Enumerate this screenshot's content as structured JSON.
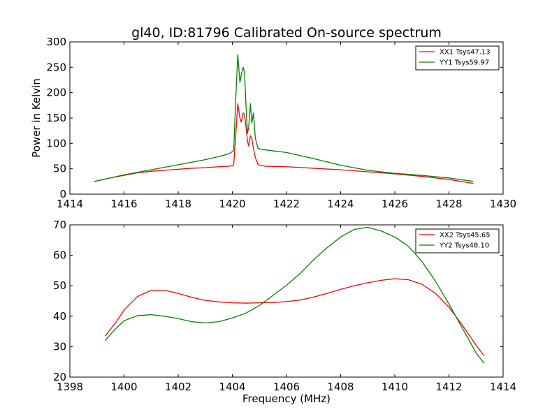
{
  "figure": {
    "title": "gl40, ID:81796 Calibrated On-source spectrum",
    "ylabel": "Power in Kelvin",
    "xlabel": "Frequency (MHz)"
  },
  "chart_data": [
    {
      "type": "line",
      "title": "gl40, ID:81796 Calibrated On-source spectrum",
      "ylabel": "Power in Kelvin",
      "xlabel": "",
      "xlim": [
        1414,
        1430
      ],
      "ylim": [
        0,
        300
      ],
      "xticks": [
        "1414",
        "1416",
        "1418",
        "1420",
        "1422",
        "1424",
        "1426",
        "1428",
        "1430"
      ],
      "yticks": [
        "0",
        "50",
        "100",
        "150",
        "200",
        "250",
        "300"
      ],
      "grid": false,
      "legend_position": "top-right",
      "series": [
        {
          "name": "XX1 Tsys47.13",
          "color": "#ff0000",
          "points": [
            [
              1414.9,
              25
            ],
            [
              1415.5,
              32
            ],
            [
              1416.0,
              37
            ],
            [
              1416.5,
              42
            ],
            [
              1417.0,
              45
            ],
            [
              1417.5,
              47
            ],
            [
              1418.0,
              49
            ],
            [
              1418.5,
              51
            ],
            [
              1419.0,
              52
            ],
            [
              1419.5,
              54
            ],
            [
              1419.9,
              55
            ],
            [
              1420.05,
              57
            ],
            [
              1420.12,
              110
            ],
            [
              1420.2,
              178
            ],
            [
              1420.28,
              150
            ],
            [
              1420.33,
              142
            ],
            [
              1420.4,
              160
            ],
            [
              1420.45,
              157
            ],
            [
              1420.5,
              135
            ],
            [
              1420.56,
              105
            ],
            [
              1420.6,
              95
            ],
            [
              1420.67,
              115
            ],
            [
              1420.72,
              110
            ],
            [
              1420.78,
              90
            ],
            [
              1420.85,
              72
            ],
            [
              1420.95,
              58
            ],
            [
              1421.2,
              55
            ],
            [
              1422.0,
              54
            ],
            [
              1423.0,
              51
            ],
            [
              1424.0,
              48
            ],
            [
              1425.0,
              44
            ],
            [
              1426.0,
              40
            ],
            [
              1427.0,
              35
            ],
            [
              1428.0,
              29
            ],
            [
              1428.9,
              21
            ]
          ]
        },
        {
          "name": "YY1 Tsys59.97",
          "color": "#008000",
          "points": [
            [
              1414.9,
              25
            ],
            [
              1415.5,
              32
            ],
            [
              1416.0,
              38
            ],
            [
              1416.5,
              43
            ],
            [
              1417.0,
              48
            ],
            [
              1417.5,
              53
            ],
            [
              1418.0,
              58
            ],
            [
              1418.5,
              63
            ],
            [
              1419.0,
              68
            ],
            [
              1419.5,
              74
            ],
            [
              1419.9,
              80
            ],
            [
              1420.05,
              86
            ],
            [
              1420.12,
              180
            ],
            [
              1420.2,
              275
            ],
            [
              1420.28,
              220
            ],
            [
              1420.33,
              235
            ],
            [
              1420.4,
              250
            ],
            [
              1420.45,
              240
            ],
            [
              1420.5,
              180
            ],
            [
              1420.56,
              120
            ],
            [
              1420.6,
              130
            ],
            [
              1420.67,
              178
            ],
            [
              1420.72,
              140
            ],
            [
              1420.78,
              160
            ],
            [
              1420.85,
              110
            ],
            [
              1420.95,
              90
            ],
            [
              1421.1,
              88
            ],
            [
              1422.0,
              82
            ],
            [
              1423.0,
              70
            ],
            [
              1424.0,
              57
            ],
            [
              1425.0,
              47
            ],
            [
              1426.0,
              41
            ],
            [
              1427.0,
              37
            ],
            [
              1428.0,
              32
            ],
            [
              1428.9,
              25
            ]
          ]
        }
      ]
    },
    {
      "type": "line",
      "title": "",
      "ylabel": "",
      "xlabel": "Frequency (MHz)",
      "xlim": [
        1398,
        1414
      ],
      "ylim": [
        20,
        70
      ],
      "xticks": [
        "1398",
        "1400",
        "1402",
        "1404",
        "1406",
        "1408",
        "1410",
        "1412",
        "1414"
      ],
      "yticks": [
        "20",
        "30",
        "40",
        "50",
        "60",
        "70"
      ],
      "grid": false,
      "legend_position": "top-right",
      "series": [
        {
          "name": "XX2 Tsys45.65",
          "color": "#ff0000",
          "points": [
            [
              1399.3,
              33.5
            ],
            [
              1399.7,
              38
            ],
            [
              1400.0,
              42
            ],
            [
              1400.5,
              46.5
            ],
            [
              1401.0,
              48.5
            ],
            [
              1401.5,
              48.5
            ],
            [
              1402.0,
              47.5
            ],
            [
              1402.5,
              46.2
            ],
            [
              1403.0,
              45.2
            ],
            [
              1403.5,
              44.7
            ],
            [
              1404.0,
              44.4
            ],
            [
              1404.5,
              44.3
            ],
            [
              1405.0,
              44.4
            ],
            [
              1405.5,
              44.5
            ],
            [
              1406.0,
              44.8
            ],
            [
              1406.5,
              45.3
            ],
            [
              1407.0,
              46.3
            ],
            [
              1407.5,
              47.5
            ],
            [
              1408.0,
              48.8
            ],
            [
              1408.5,
              50.0
            ],
            [
              1409.0,
              51.0
            ],
            [
              1409.5,
              51.8
            ],
            [
              1410.0,
              52.3
            ],
            [
              1410.5,
              52.0
            ],
            [
              1411.0,
              50.5
            ],
            [
              1411.5,
              47.5
            ],
            [
              1412.0,
              43.0
            ],
            [
              1412.5,
              37.0
            ],
            [
              1413.0,
              30.5
            ],
            [
              1413.3,
              27.0
            ]
          ]
        },
        {
          "name": "YY2 Tsys48.10",
          "color": "#008000",
          "points": [
            [
              1399.3,
              32
            ],
            [
              1399.7,
              36
            ],
            [
              1400.0,
              38.5
            ],
            [
              1400.5,
              40.2
            ],
            [
              1401.0,
              40.5
            ],
            [
              1401.5,
              40.0
            ],
            [
              1402.0,
              39.2
            ],
            [
              1402.5,
              38.2
            ],
            [
              1403.0,
              37.8
            ],
            [
              1403.5,
              38.2
            ],
            [
              1404.0,
              39.4
            ],
            [
              1404.5,
              41.0
            ],
            [
              1405.0,
              43.5
            ],
            [
              1405.5,
              46.8
            ],
            [
              1406.0,
              50.2
            ],
            [
              1406.5,
              54.0
            ],
            [
              1407.0,
              58.5
            ],
            [
              1407.5,
              62.5
            ],
            [
              1408.0,
              66.0
            ],
            [
              1408.5,
              68.5
            ],
            [
              1409.0,
              69.2
            ],
            [
              1409.5,
              68.0
            ],
            [
              1410.0,
              66.0
            ],
            [
              1410.5,
              63.0
            ],
            [
              1411.0,
              58.0
            ],
            [
              1411.5,
              51.5
            ],
            [
              1412.0,
              44.0
            ],
            [
              1412.5,
              36.0
            ],
            [
              1413.0,
              28.0
            ],
            [
              1413.3,
              24.5
            ]
          ]
        }
      ]
    }
  ]
}
